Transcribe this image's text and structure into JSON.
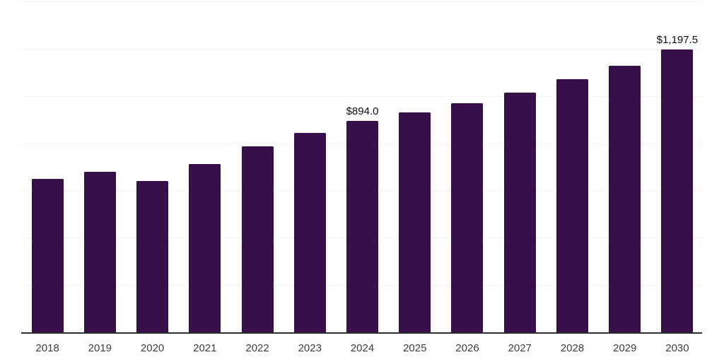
{
  "chart_data": {
    "type": "bar",
    "title": "",
    "xlabel": "",
    "ylabel": "",
    "categories": [
      "2018",
      "2019",
      "2020",
      "2021",
      "2022",
      "2023",
      "2024",
      "2025",
      "2026",
      "2027",
      "2028",
      "2029",
      "2030"
    ],
    "values": [
      650,
      680,
      640,
      712,
      786,
      845,
      894.0,
      930,
      970,
      1014,
      1070,
      1129,
      1197.5
    ],
    "data_labels": [
      null,
      null,
      null,
      null,
      null,
      null,
      "$894.0",
      null,
      null,
      null,
      null,
      null,
      "$1,197.5"
    ],
    "ylim": [
      0,
      1400
    ],
    "gridline_step": 200,
    "grid": true,
    "legend_position": "none",
    "colors": {
      "bar": "#371049",
      "axis_line": "#2e2e2e",
      "gridline": "#f2f2f2",
      "tick_label": "#3c3c3c",
      "data_label": "#0d0d0d",
      "background": "#ffffff"
    }
  }
}
